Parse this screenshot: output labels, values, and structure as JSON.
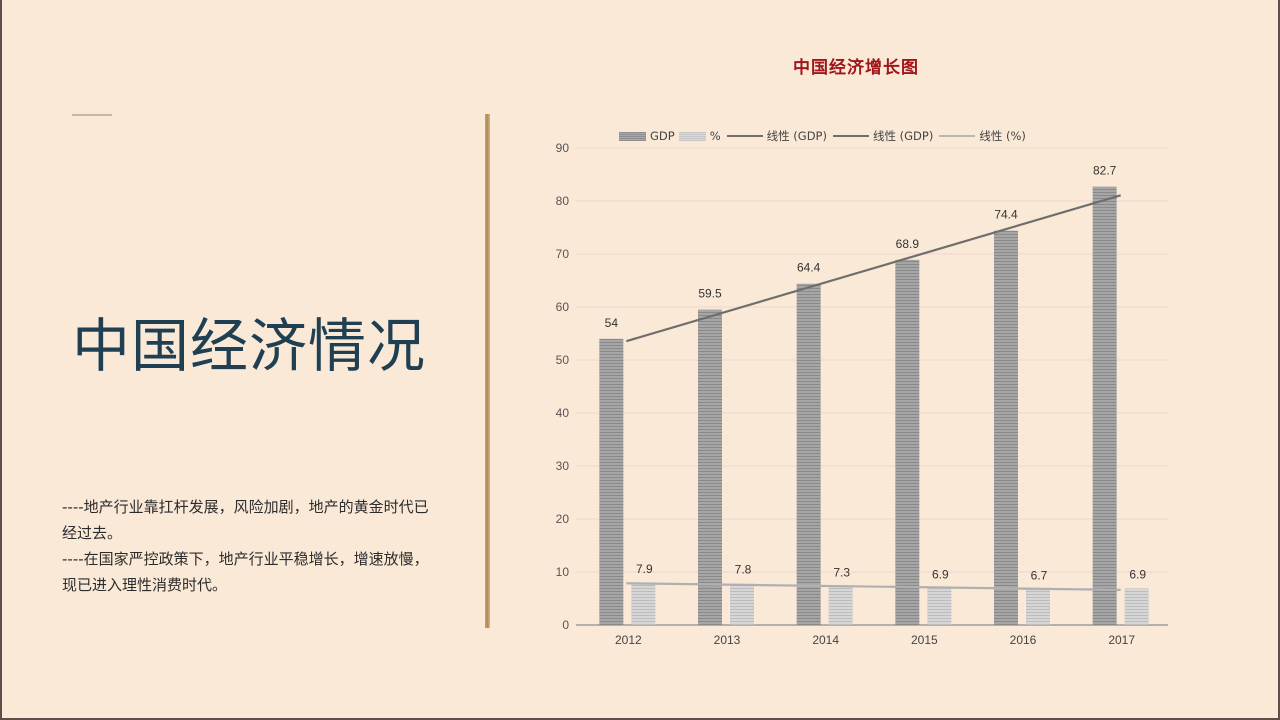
{
  "slide": {
    "title": "中国经济情况",
    "paragraphs": [
      "----地产行业靠扛杆发展，风险加剧，地产的黄金时代已经过去。",
      "----在国家严控政策下，地产行业平稳增长，增速放慢，现已进入理性消费时代。"
    ]
  },
  "colors": {
    "background": "#fbe9d7",
    "title": "#1f3f52",
    "chart_title": "#a0161a",
    "gdp_bar": "#9b9b9b",
    "pct_bar": "#cfcfcf",
    "trend_gdp": "#6e6e6e",
    "trend_pct": "#b0b0b0",
    "divider": "#b08758"
  },
  "legend": {
    "gdp": "GDP",
    "pct": "%",
    "trend_gdp_1": "线性 (GDP)",
    "trend_gdp_2": "线性 (GDP)",
    "trend_pct": "线性 (%)"
  },
  "chart_data": {
    "type": "bar",
    "title": "中国经济增长图",
    "categories": [
      "2012",
      "2013",
      "2014",
      "2015",
      "2016",
      "2017"
    ],
    "series": [
      {
        "name": "GDP",
        "values": [
          54,
          59.5,
          64.4,
          68.9,
          74.4,
          82.7
        ]
      },
      {
        "name": "%",
        "values": [
          7.9,
          7.8,
          7.3,
          6.9,
          6.7,
          6.9
        ]
      }
    ],
    "trendlines": [
      {
        "name": "线性 (GDP)",
        "series": "GDP",
        "type": "linear"
      },
      {
        "name": "线性 (GDP)",
        "series": "GDP",
        "type": "linear"
      },
      {
        "name": "线性 (%)",
        "series": "%",
        "type": "linear"
      }
    ],
    "xlabel": "",
    "ylabel": "",
    "ylim": [
      0,
      90
    ],
    "yticks": [
      0,
      10,
      20,
      30,
      40,
      50,
      60,
      70,
      80,
      90
    ],
    "grid": true,
    "legend_position": "top",
    "data_labels": true
  }
}
